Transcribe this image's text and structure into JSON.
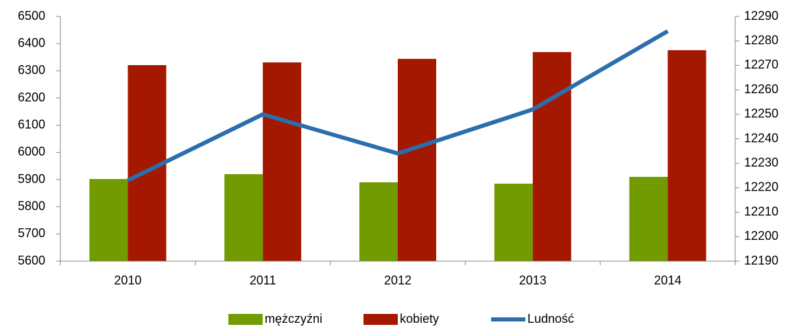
{
  "chart_data": {
    "type": "bar",
    "categories": [
      "2010",
      "2011",
      "2012",
      "2013",
      "2014"
    ],
    "series": [
      {
        "name": "mężczyźni",
        "color": "#719b00",
        "values": [
          5902,
          5920,
          5890,
          5885,
          5910
        ]
      },
      {
        "name": "kobiety",
        "color": "#a51800",
        "values": [
          6321,
          6331,
          6344,
          6369,
          6376
        ]
      },
      {
        "name": "Ludność",
        "color": "#2a6ead",
        "type": "line",
        "axis": "y2",
        "values": [
          12223,
          12250,
          12234,
          12252,
          12284
        ]
      }
    ],
    "ylim": [
      5600,
      6500
    ],
    "yticks": [
      5600,
      5700,
      5800,
      5900,
      6000,
      6100,
      6200,
      6300,
      6400,
      6500
    ],
    "y2lim": [
      12190,
      12290
    ],
    "y2ticks": [
      12190,
      12200,
      12210,
      12220,
      12230,
      12240,
      12250,
      12260,
      12270,
      12280,
      12290
    ],
    "legend": "bottom"
  }
}
